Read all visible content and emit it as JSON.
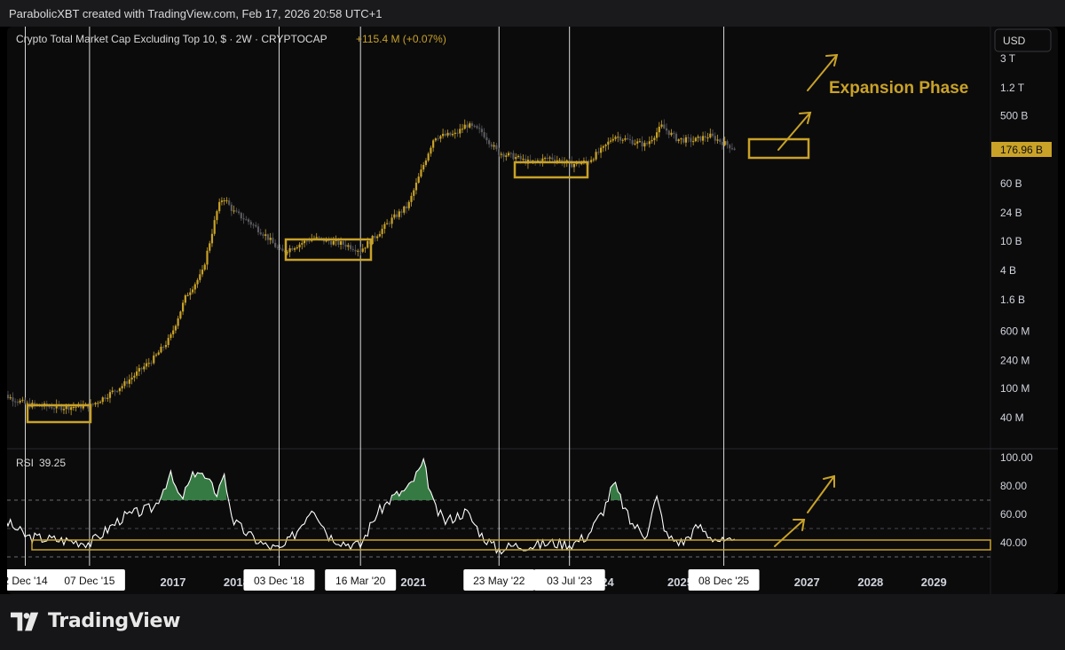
{
  "header": {
    "credit": "ParabolicXBT created with TradingView.com, Feb 17, 2026 20:58 UTC+1"
  },
  "legend": {
    "symbol": "Crypto Total Market Cap Excluding Top 10, $ · 2W · CRYPTOCAP",
    "change": "+115.4 M (+0.07%)"
  },
  "currency_button": "USD",
  "price_axis_labels": [
    "3 T",
    "1.2 T",
    "500 B",
    "60 B",
    "24 B",
    "10 B",
    "4 B",
    "1.6 B",
    "600 M",
    "240 M",
    "100 M",
    "40 M"
  ],
  "current_price": "176.96 B",
  "annotation": "Expansion Phase",
  "rsi": {
    "label": "RSI",
    "value": "39.25",
    "axis_labels": [
      "100.00",
      "80.00",
      "60.00",
      "40.00"
    ]
  },
  "time_axis": {
    "year_labels": [
      "2017",
      "2018",
      "2021",
      "2024",
      "2025",
      "2027",
      "2028",
      "2029"
    ],
    "marker_labels": [
      "2 Dec '14",
      "07 Dec '15",
      "03 Dec '18",
      "16 Mar '20",
      "23 May '22",
      "03 Jul '23",
      "08 Dec '25"
    ]
  },
  "brand": {
    "name": "TradingView"
  },
  "colors": {
    "candle": "#c9a227",
    "accent": "#c9a227",
    "rsi_line": "#ffffff",
    "overbought_fill": "#3e8e4e"
  },
  "chart_data": {
    "type": "line",
    "title": "Crypto Total Market Cap Excluding Top 10, $ · 2W · CRYPTOCAP",
    "scale": "log",
    "ylim": [
      20000000,
      5000000000000
    ],
    "x": [
      "2014-06",
      "2014-12",
      "2015-06",
      "2015-12",
      "2016-06",
      "2016-12",
      "2017-03",
      "2017-06",
      "2017-09",
      "2017-12",
      "2018-01",
      "2018-03",
      "2018-06",
      "2018-09",
      "2018-12",
      "2019-06",
      "2019-12",
      "2020-03",
      "2020-06",
      "2020-09",
      "2020-12",
      "2021-03",
      "2021-05",
      "2021-09",
      "2021-11",
      "2022-02",
      "2022-05",
      "2022-08",
      "2022-11",
      "2023-03",
      "2023-07",
      "2023-10",
      "2024-01",
      "2024-03",
      "2024-06",
      "2024-09",
      "2024-12",
      "2025-03",
      "2025-06",
      "2025-09",
      "2025-12",
      "2026-02"
    ],
    "values": [
      90000000,
      60000000,
      55000000,
      58000000,
      110000000,
      260000000,
      480000000,
      1800000000,
      3600000000,
      28000000000,
      40000000000,
      25000000000,
      18000000000,
      12000000000,
      7000000000,
      11000000000,
      9000000000,
      7500000000,
      12000000000,
      20000000000,
      30000000000,
      110000000000,
      260000000000,
      280000000000,
      380000000000,
      300000000000,
      160000000000,
      140000000000,
      115000000000,
      135000000000,
      110000000000,
      120000000000,
      180000000000,
      270000000000,
      230000000000,
      200000000000,
      360000000000,
      240000000000,
      230000000000,
      270000000000,
      210000000000,
      176960000000
    ],
    "rsi": {
      "name": "RSI",
      "ylim": [
        25,
        100
      ],
      "overbought": 70,
      "oversold": 30,
      "x": [
        "2014-06",
        "2014-12",
        "2015-06",
        "2015-12",
        "2016-06",
        "2016-12",
        "2017-03",
        "2017-05",
        "2017-08",
        "2017-12",
        "2018-01",
        "2018-03",
        "2018-06",
        "2018-09",
        "2018-12",
        "2019-03",
        "2019-06",
        "2019-09",
        "2019-12",
        "2020-03",
        "2020-06",
        "2020-09",
        "2020-12",
        "2021-03",
        "2021-05",
        "2021-07",
        "2021-11",
        "2022-02",
        "2022-05",
        "2022-08",
        "2022-12",
        "2023-03",
        "2023-07",
        "2023-10",
        "2024-01",
        "2024-03",
        "2024-06",
        "2024-09",
        "2024-11",
        "2025-01",
        "2025-04",
        "2025-07",
        "2025-09",
        "2025-12",
        "2026-02"
      ],
      "values": [
        60,
        44,
        42,
        40,
        58,
        65,
        88,
        70,
        92,
        75,
        90,
        55,
        45,
        38,
        35,
        48,
        66,
        45,
        40,
        38,
        60,
        72,
        78,
        96,
        65,
        55,
        62,
        45,
        35,
        38,
        38,
        40,
        39,
        45,
        63,
        82,
        55,
        45,
        72,
        44,
        40,
        52,
        45,
        40,
        39.25
      ]
    },
    "marker_dates": [
      "2014-12-02",
      "2015-12-07",
      "2018-12-03",
      "2020-03-16",
      "2022-05-23",
      "2023-07-03",
      "2025-12-08"
    ]
  }
}
